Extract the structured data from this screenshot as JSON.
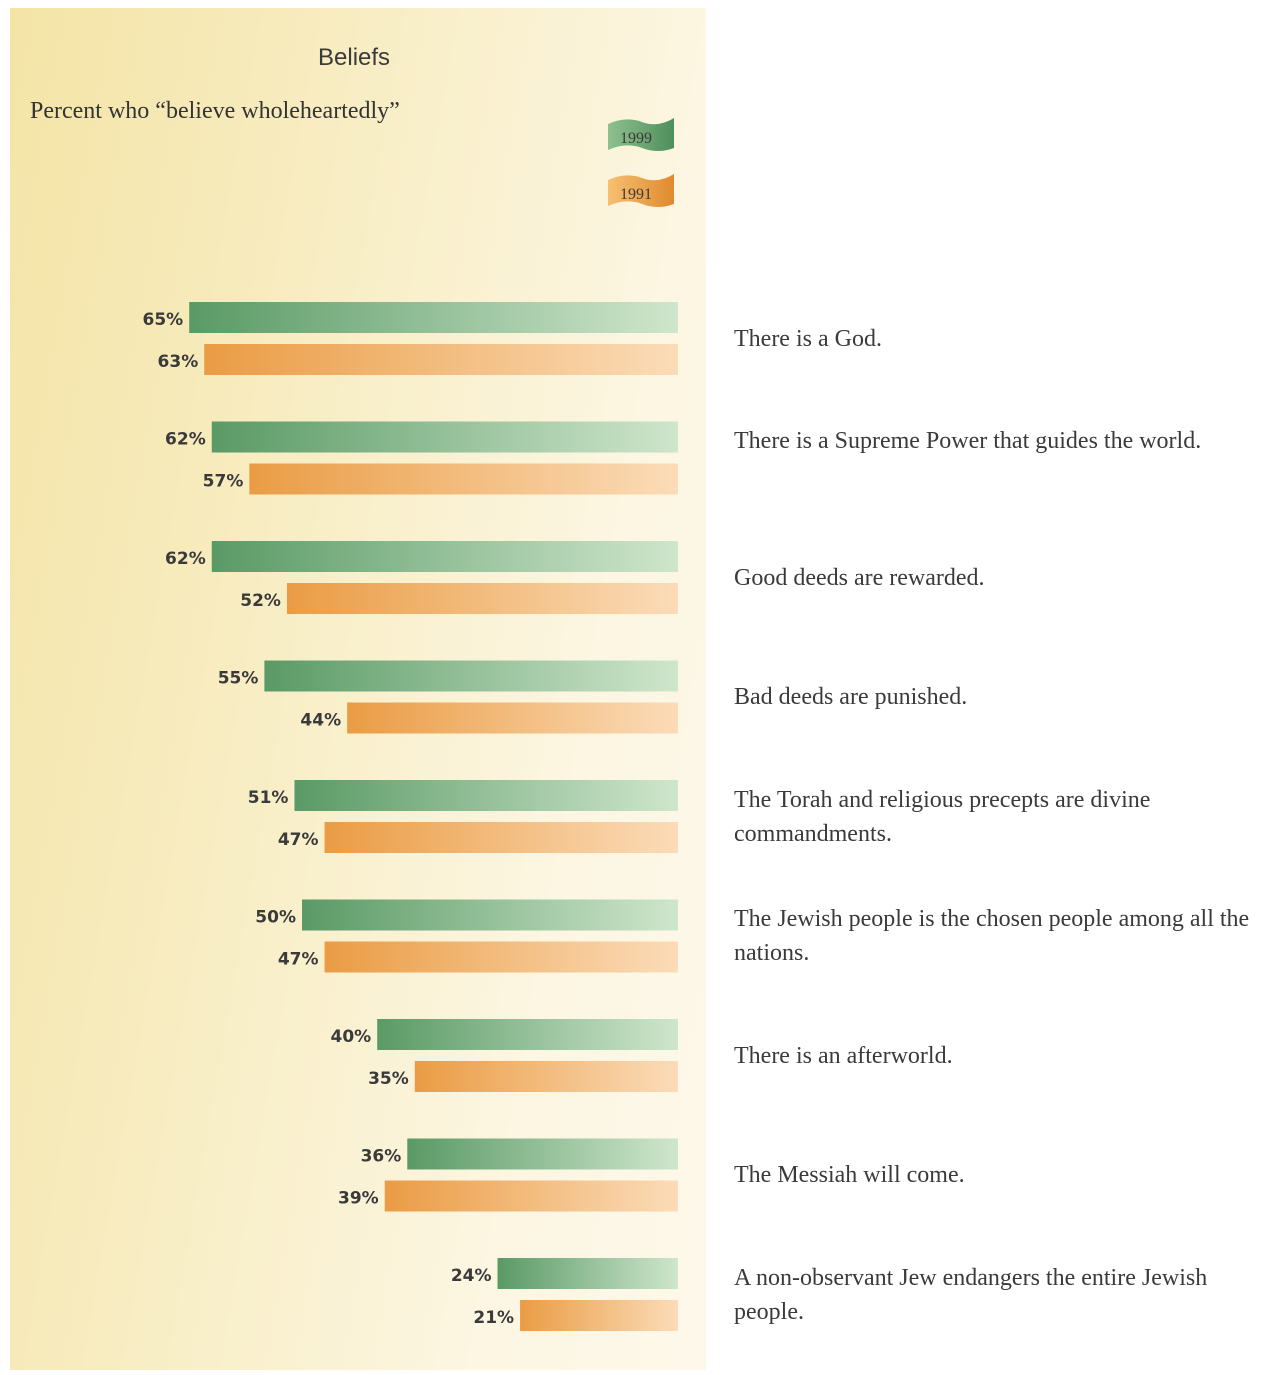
{
  "chart_data": {
    "type": "bar",
    "orientation": "horizontal",
    "title": "Beliefs",
    "subtitle": "Percent who “believe wholeheartedly”",
    "xlim": [
      0,
      100
    ],
    "legend_position": "top-right",
    "categories": [
      "There is a God.",
      "There is a Supreme Power that guides the world.",
      "Good deeds are rewarded.",
      "Bad deeds are punished.",
      "The Torah and religious precepts are divine commandments.",
      "The Jewish people is the chosen people among all the nations.",
      "There is an afterworld.",
      "The Messiah will come.",
      "A non-observant Jew endangers the entire Jewish people."
    ],
    "series": [
      {
        "name": "1999",
        "color": "#5e9e68",
        "values": [
          65,
          62,
          62,
          55,
          51,
          50,
          40,
          36,
          24
        ],
        "labels": [
          "65%",
          "62%",
          "62%",
          "55%",
          "51%",
          "50%",
          "40%",
          "36%",
          "24%"
        ]
      },
      {
        "name": "1991",
        "color": "#e8a048",
        "values": [
          63,
          57,
          52,
          44,
          47,
          47,
          35,
          39,
          21
        ],
        "labels": [
          "63%",
          "57%",
          "52%",
          "44%",
          "47%",
          "47%",
          "35%",
          "39%",
          "21%"
        ]
      }
    ]
  }
}
